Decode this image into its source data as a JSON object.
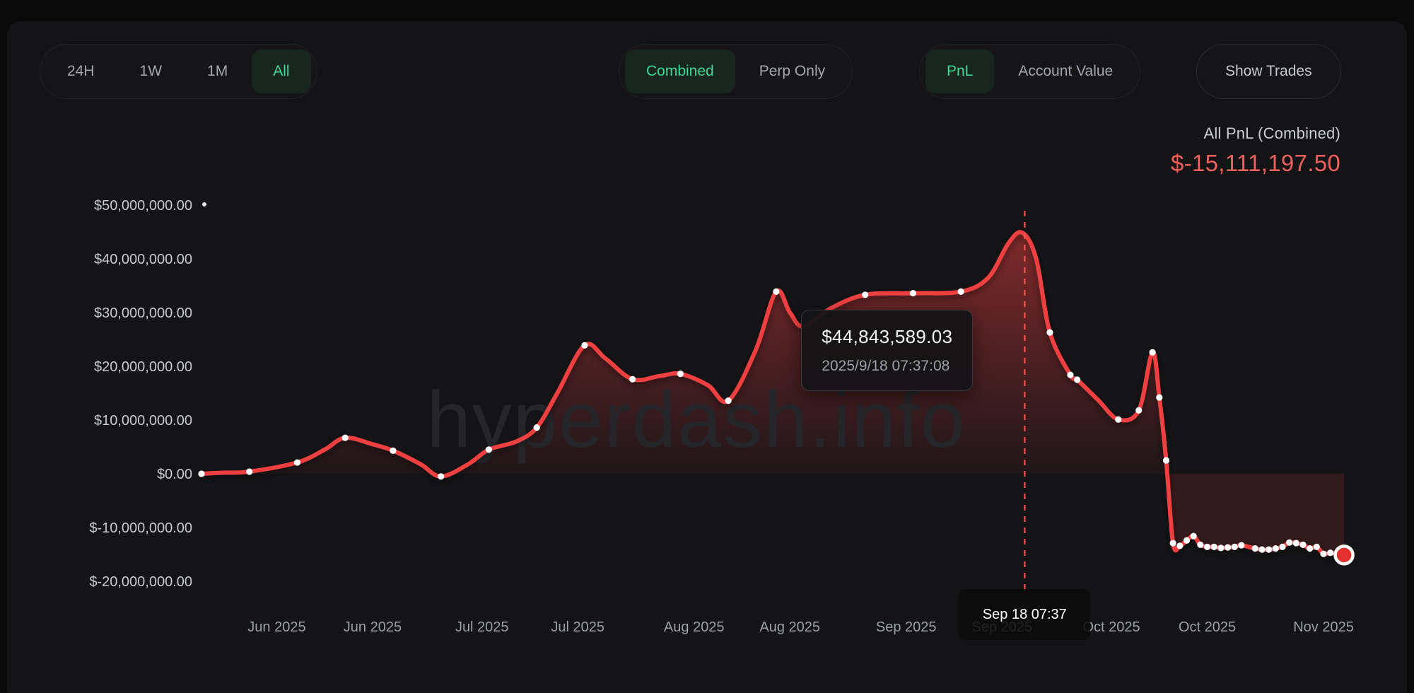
{
  "toolbar": {
    "range_tabs": [
      {
        "label": "24H",
        "active": false
      },
      {
        "label": "1W",
        "active": false
      },
      {
        "label": "1M",
        "active": false
      },
      {
        "label": "All",
        "active": true
      }
    ],
    "mode_tabs": [
      {
        "label": "Combined",
        "active": true
      },
      {
        "label": "Perp Only",
        "active": false
      }
    ],
    "metric_tabs": [
      {
        "label": "PnL",
        "active": true
      },
      {
        "label": "Account Value",
        "active": false
      }
    ],
    "show_trades_label": "Show Trades"
  },
  "summary": {
    "title": "All PnL (Combined)",
    "value": "$-15,111,197.50"
  },
  "tooltip": {
    "value": "$44,843,589.03",
    "datetime": "2025/9/18 07:37:08"
  },
  "axis_tooltip": {
    "label": "Sep 18 07:37"
  },
  "watermark": "hyperdash.info",
  "colors": {
    "accent_green": "#3fd695",
    "line_red": "#ee4040",
    "value_red": "#ee605c",
    "panel_bg": "#141416",
    "page_bg": "#09090a"
  },
  "chart_data": {
    "type": "area",
    "title": "All PnL (Combined)",
    "unit": "USD (values in millions)",
    "grid": false,
    "legend": false,
    "ylim": [
      -20,
      50
    ],
    "x_range": [
      "2025-05-21",
      "2025-11-04"
    ],
    "y_ticks": [
      {
        "value": 50,
        "label": "$50,000,000.00"
      },
      {
        "value": 40,
        "label": "$40,000,000.00"
      },
      {
        "value": 30,
        "label": "$30,000,000.00"
      },
      {
        "value": 20,
        "label": "$20,000,000.00"
      },
      {
        "value": 10,
        "label": "$10,000,000.00"
      },
      {
        "value": 0,
        "label": "$0.00"
      },
      {
        "value": -10,
        "label": "$-10,000,000.00"
      },
      {
        "value": -20,
        "label": "$-20,000,000.00"
      }
    ],
    "x_ticks": [
      {
        "date": "2025-06-01",
        "label": "Jun 2025"
      },
      {
        "date": "2025-06-15",
        "label": "Jun 2025"
      },
      {
        "date": "2025-07-01",
        "label": "Jul 2025"
      },
      {
        "date": "2025-07-15",
        "label": "Jul 2025"
      },
      {
        "date": "2025-08-01",
        "label": "Aug 2025"
      },
      {
        "date": "2025-08-15",
        "label": "Aug 2025"
      },
      {
        "date": "2025-09-01",
        "label": "Sep 2025"
      },
      {
        "date": "2025-09-15",
        "label": "Sep 2025"
      },
      {
        "date": "2025-10-01",
        "label": "Oct 2025"
      },
      {
        "date": "2025-10-15",
        "label": "Oct 2025"
      },
      {
        "date": "2025-11-01",
        "label": "Nov 2025"
      }
    ],
    "points": [
      [
        "2025-05-21",
        0.0,
        1
      ],
      [
        "2025-05-24",
        0.2,
        0
      ],
      [
        "2025-05-28",
        0.4,
        1
      ],
      [
        "2025-06-04",
        2.1,
        1
      ],
      [
        "2025-06-08",
        4.5,
        0
      ],
      [
        "2025-06-11",
        6.7,
        1
      ],
      [
        "2025-06-15",
        5.5,
        0
      ],
      [
        "2025-06-18",
        4.3,
        1
      ],
      [
        "2025-06-22",
        1.8,
        0
      ],
      [
        "2025-06-25",
        -0.5,
        1
      ],
      [
        "2025-06-29",
        1.8,
        0
      ],
      [
        "2025-07-02",
        4.5,
        1
      ],
      [
        "2025-07-06",
        6.0,
        0
      ],
      [
        "2025-07-09",
        8.6,
        1
      ],
      [
        "2025-07-12",
        15.0,
        0
      ],
      [
        "2025-07-16",
        23.9,
        1
      ],
      [
        "2025-07-19",
        21.5,
        0
      ],
      [
        "2025-07-23",
        17.6,
        1
      ],
      [
        "2025-07-27",
        18.2,
        0
      ],
      [
        "2025-07-30",
        18.6,
        1
      ],
      [
        "2025-08-03",
        16.5,
        0
      ],
      [
        "2025-08-06",
        13.6,
        1
      ],
      [
        "2025-08-10",
        23.0,
        0
      ],
      [
        "2025-08-13",
        33.9,
        1
      ],
      [
        "2025-08-15",
        30.0,
        0
      ],
      [
        "2025-08-17",
        27.4,
        0
      ],
      [
        "2025-08-21",
        30.8,
        0
      ],
      [
        "2025-08-26",
        33.3,
        1
      ],
      [
        "2025-09-02",
        33.6,
        1
      ],
      [
        "2025-09-09",
        33.9,
        1
      ],
      [
        "2025-09-13",
        36.5,
        0
      ],
      [
        "2025-09-16",
        43.0,
        0
      ],
      [
        "2025-09-18",
        44.84,
        0
      ],
      [
        "2025-09-20",
        40.0,
        0
      ],
      [
        "2025-09-22",
        26.3,
        1
      ],
      [
        "2025-09-25",
        18.4,
        1
      ],
      [
        "2025-09-26",
        17.5,
        1
      ],
      [
        "2025-09-29",
        13.8,
        0
      ],
      [
        "2025-10-02",
        10.1,
        1
      ],
      [
        "2025-10-05",
        11.8,
        1
      ],
      [
        "2025-10-07",
        22.6,
        1
      ],
      [
        "2025-10-08",
        14.2,
        1
      ],
      [
        "2025-10-09",
        2.5,
        1
      ],
      [
        "2025-10-10",
        -12.9,
        1
      ],
      [
        "2025-10-11",
        -13.4,
        1
      ],
      [
        "2025-10-12",
        -12.4,
        1
      ],
      [
        "2025-10-13",
        -11.6,
        1
      ],
      [
        "2025-10-14",
        -13.2,
        1
      ],
      [
        "2025-10-15",
        -13.6,
        1
      ],
      [
        "2025-10-16",
        -13.6,
        1
      ],
      [
        "2025-10-17",
        -13.8,
        1
      ],
      [
        "2025-10-18",
        -13.7,
        1
      ],
      [
        "2025-10-19",
        -13.6,
        1
      ],
      [
        "2025-10-20",
        -13.3,
        1
      ],
      [
        "2025-10-22",
        -13.9,
        1
      ],
      [
        "2025-10-23",
        -14.1,
        1
      ],
      [
        "2025-10-24",
        -14.1,
        1
      ],
      [
        "2025-10-25",
        -13.9,
        1
      ],
      [
        "2025-10-26",
        -13.6,
        1
      ],
      [
        "2025-10-27",
        -12.8,
        1
      ],
      [
        "2025-10-28",
        -12.9,
        1
      ],
      [
        "2025-10-29",
        -13.2,
        1
      ],
      [
        "2025-10-30",
        -13.9,
        1
      ],
      [
        "2025-10-31",
        -13.6,
        1
      ],
      [
        "2025-11-01",
        -14.9,
        1
      ],
      [
        "2025-11-02",
        -14.7,
        1
      ],
      [
        "2025-11-03",
        -14.9,
        1
      ],
      [
        "2025-11-04",
        -15.11,
        2
      ]
    ],
    "highlight": {
      "date": "2025-09-18T07:37:08",
      "value_musd": 44.84,
      "value_label": "$44,843,589.03",
      "axis_label": "Sep 18 07:37"
    },
    "end_point": {
      "date": "2025-11-04",
      "value_musd": -15.11,
      "value_label": "$-15,111,197.50"
    }
  }
}
